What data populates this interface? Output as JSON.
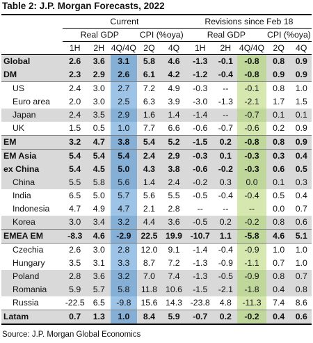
{
  "title": "Table 2: J.P. Morgan Forecasts, 2022",
  "headers": {
    "group_current": "Current",
    "group_revisions": "Revisions since Feb 18",
    "real_gdp": "Real GDP",
    "cpi": "CPI (%oya)",
    "cols": [
      "1H",
      "2H",
      "4Q/4Q",
      "2Q",
      "4Q",
      "1H",
      "2H",
      "4Q/4Q",
      "2Q",
      "4Q"
    ]
  },
  "rows": [
    {
      "label": "Global",
      "v": [
        "2.6",
        "3.6",
        "3.1",
        "5.8",
        "4.6",
        "-1.3",
        "-0.1",
        "-0.8",
        "0.8",
        "0.9"
      ]
    },
    {
      "label": "DM",
      "v": [
        "2.3",
        "2.9",
        "2.6",
        "6.1",
        "4.2",
        "-1.2",
        "-0.4",
        "-0.8",
        "0.9",
        "0.9"
      ]
    },
    {
      "label": "US",
      "v": [
        "2.4",
        "3.0",
        "2.7",
        "7.2",
        "4.9",
        "-0.3",
        "--",
        "-0.1",
        "0.8",
        "1.0"
      ]
    },
    {
      "label": "Euro area",
      "v": [
        "2.0",
        "3.0",
        "2.5",
        "6.3",
        "3.9",
        "-3.0",
        "-1.3",
        "-2.1",
        "1.7",
        "1.5"
      ]
    },
    {
      "label": "Japan",
      "v": [
        "2.4",
        "3.5",
        "2.9",
        "1.6",
        "1.4",
        "-1.4",
        "--",
        "-0.7",
        "0.1",
        "0.1"
      ]
    },
    {
      "label": "UK",
      "v": [
        "1.5",
        "0.5",
        "1.0",
        "7.7",
        "6.6",
        "-0.6",
        "-0.7",
        "-0.6",
        "0.2",
        "0.9"
      ]
    },
    {
      "label": "EM",
      "v": [
        "3.2",
        "4.7",
        "3.8",
        "5.4",
        "5.2",
        "-1.5",
        "0.2",
        "-0.8",
        "0.8",
        "0.9"
      ]
    },
    {
      "label": "EM Asia",
      "v": [
        "5.4",
        "5.4",
        "5.4",
        "2.4",
        "2.9",
        "-0.3",
        "0.1",
        "-0.3",
        "0.3",
        "0.4"
      ]
    },
    {
      "label": "ex China",
      "v": [
        "5.4",
        "4.5",
        "5.0",
        "4.3",
        "3.8",
        "-0.6",
        "-0.2",
        "-0.3",
        "0.6",
        "0.5"
      ]
    },
    {
      "label": "China",
      "v": [
        "5.5",
        "5.8",
        "5.6",
        "1.4",
        "2.4",
        "-0.2",
        "0.3",
        "0.0",
        "0.1",
        "0.3"
      ]
    },
    {
      "label": "India",
      "v": [
        "6.5",
        "5.0",
        "5.7",
        "5.6",
        "5.5",
        "-0.5",
        "-0.4",
        "-0.4",
        "0.5",
        "0.4"
      ]
    },
    {
      "label": "Indonesia",
      "v": [
        "4.7",
        "4.9",
        "4.7",
        "2.1",
        "2.8",
        "--",
        "--",
        "--",
        "0.0",
        "0.7"
      ]
    },
    {
      "label": "Korea",
      "v": [
        "3.0",
        "3.4",
        "3.2",
        "4.4",
        "3.6",
        "-0.5",
        "0.2",
        "-0.2",
        "0.8",
        "0.6"
      ]
    },
    {
      "label": "EMEA EM",
      "v": [
        "-8.3",
        "4.6",
        "-2.9",
        "22.5",
        "19.9",
        "-10.7",
        "1.1",
        "-5.8",
        "4.6",
        "5.1"
      ]
    },
    {
      "label": "Czechia",
      "v": [
        "2.6",
        "3.0",
        "2.8",
        "12.0",
        "9.1",
        "-1.4",
        "-0.4",
        "-0.9",
        "1.0",
        "1.0"
      ]
    },
    {
      "label": "Hungary",
      "v": [
        "3.5",
        "3.1",
        "3.3",
        "8.7",
        "7.2",
        "-1.3",
        "-0.9",
        "-1.1",
        "0.7",
        "1.0"
      ]
    },
    {
      "label": "Poland",
      "v": [
        "2.8",
        "3.6",
        "3.2",
        "7.0",
        "7.4",
        "-1.3",
        "-0.5",
        "-0.9",
        "0.8",
        "0.7"
      ]
    },
    {
      "label": "Romania",
      "v": [
        "5.9",
        "5.7",
        "5.8",
        "11.8",
        "10.6",
        "-1.5",
        "-2.1",
        "-1.8",
        "0.4",
        "0.8"
      ]
    },
    {
      "label": "Russia",
      "v": [
        "-22.5",
        "6.5",
        "-9.8",
        "15.6",
        "14.3",
        "-23.8",
        "4.8",
        "-11.3",
        "7.4",
        "8.6"
      ]
    },
    {
      "label": "Latam",
      "v": [
        "0.7",
        "1.3",
        "1.0",
        "8.4",
        "5.9",
        "-0.7",
        "0.2",
        "-0.2",
        "0.4",
        "0.6"
      ]
    }
  ],
  "source": "Source: J.P. Morgan Global Economics",
  "colors": {
    "shade": "#d9d9d9",
    "current_highlight": "#9dc3e6",
    "revision_highlight": "#d6e8b0"
  }
}
